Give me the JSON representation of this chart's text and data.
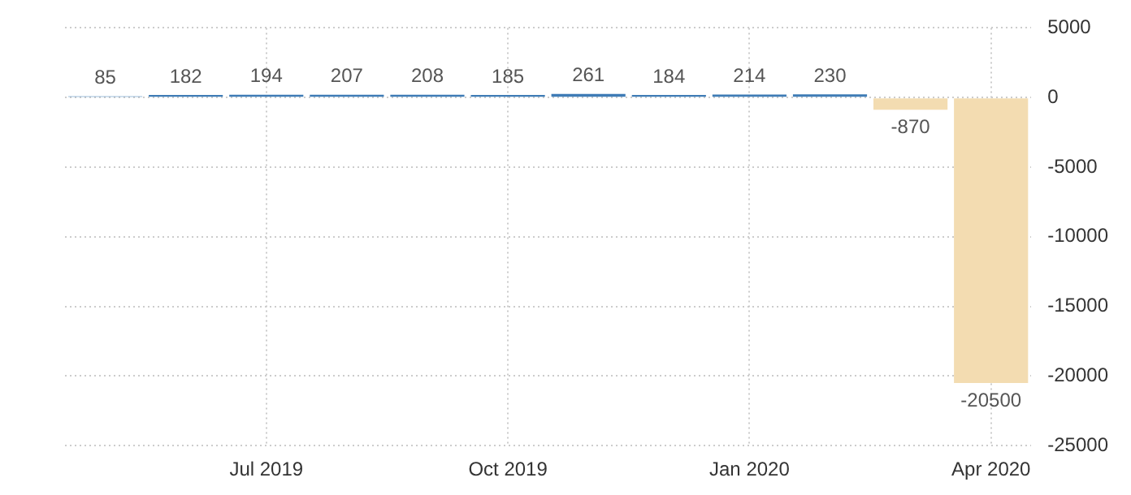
{
  "chart_data": {
    "type": "bar",
    "categories": [
      null,
      null,
      "Jul 2019",
      null,
      null,
      "Oct 2019",
      null,
      null,
      "Jan 2020",
      null,
      null,
      "Apr 2020"
    ],
    "values": [
      85,
      182,
      194,
      207,
      208,
      185,
      261,
      184,
      214,
      230,
      -870,
      -20500
    ],
    "colors": [
      "#3f7cb6",
      "#3f7cb6",
      "#3f7cb6",
      "#3f7cb6",
      "#3f7cb6",
      "#3f7cb6",
      "#3f7cb6",
      "#3f7cb6",
      "#3f7cb6",
      "#3f7cb6",
      "#f3dcb1",
      "#f3dcb1"
    ],
    "ylim": [
      -25000,
      5000
    ],
    "yticks": [
      -25000,
      -20000,
      -15000,
      -10000,
      -5000,
      0,
      5000
    ],
    "grid": true,
    "data_labels": true
  }
}
